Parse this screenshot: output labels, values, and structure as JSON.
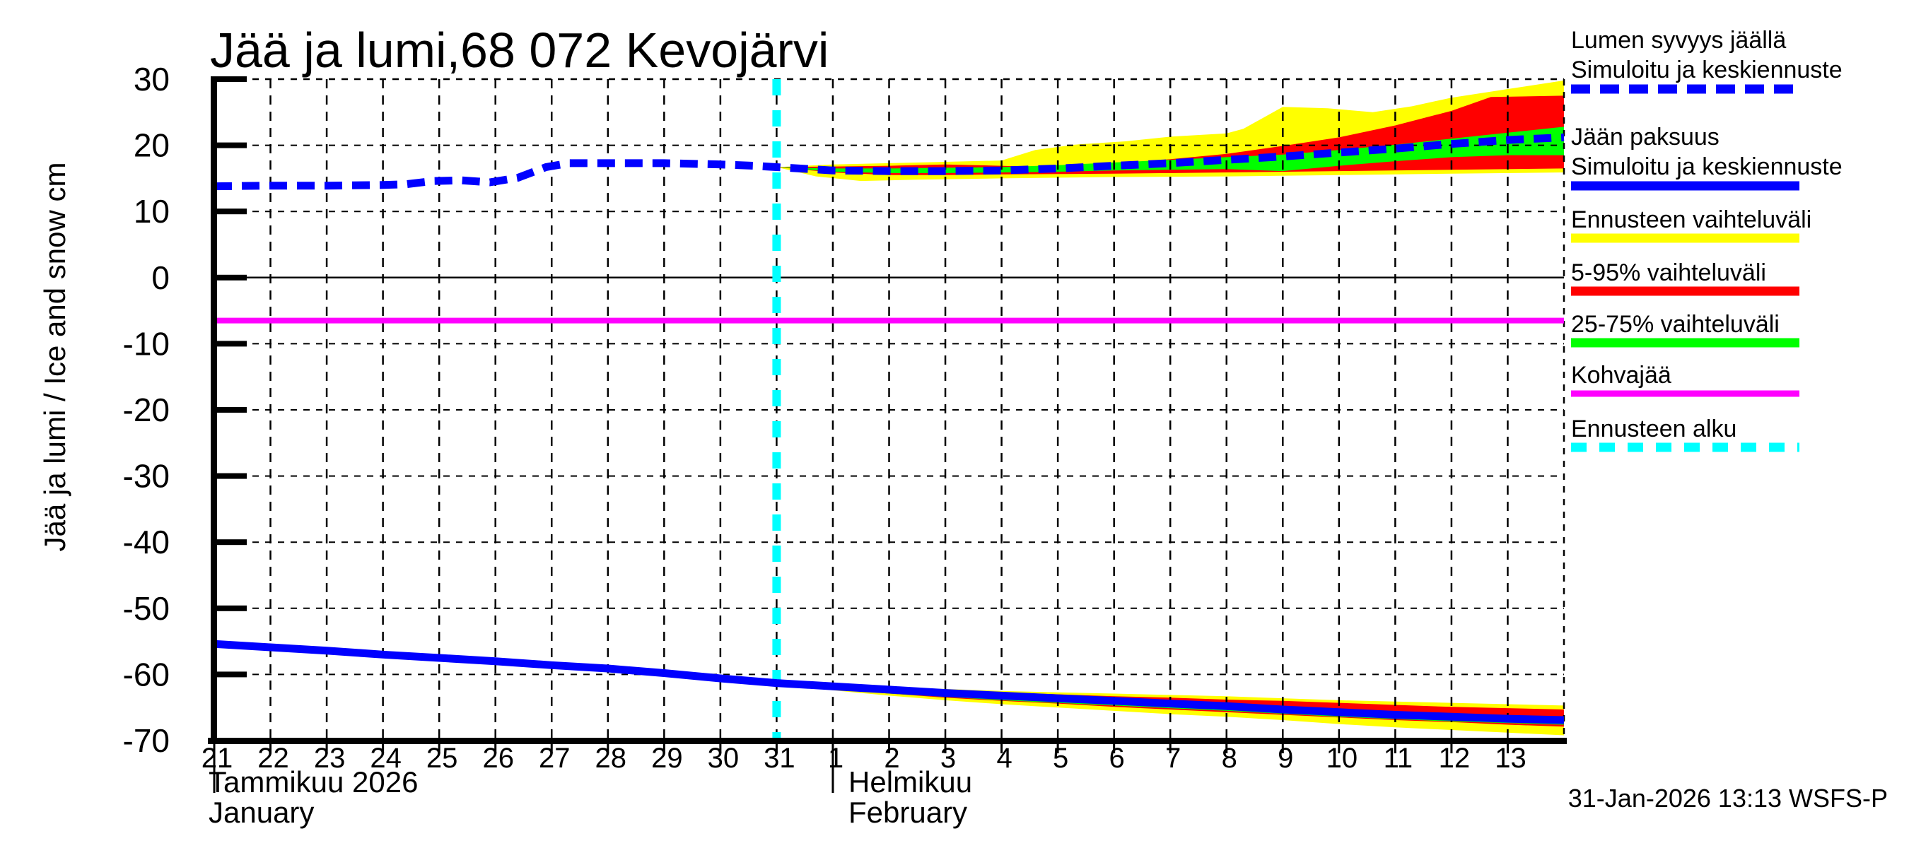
{
  "title": "Jää ja lumi,68 072 Kevojärvi",
  "footer": "31-Jan-2026 13:13 WSFS-P",
  "y_axis": {
    "label": "Jää ja lumi / Ice and snow   cm",
    "ticks": [
      30,
      20,
      10,
      0,
      -10,
      -20,
      -30,
      -40,
      -50,
      -60,
      -70
    ]
  },
  "x_axis": {
    "month_jan_fi": "Tammikuu 2026",
    "month_jan_en": "January",
    "month_feb_fi": "Helmikuu",
    "month_feb_en": "February",
    "jan_days": [
      "21",
      "22",
      "23",
      "24",
      "25",
      "26",
      "27",
      "28",
      "29",
      "30",
      "31"
    ],
    "feb_days": [
      "1",
      "2",
      "3",
      "4",
      "5",
      "6",
      "7",
      "8",
      "9",
      "10",
      "11",
      "12",
      "13"
    ]
  },
  "colors": {
    "median": "#0000ff",
    "range_forecast": "#ffff00",
    "range_5_95": "#ff0000",
    "range_25_75": "#00ff00",
    "kohvajaa": "#ff00ff",
    "forecast_start": "#00ffff",
    "axis": "#000000"
  },
  "legend": [
    {
      "lines": [
        "Lumen syvyys jäällä",
        "Simuloitu ja keskiennuste"
      ],
      "swatch": "dashed-blue"
    },
    {
      "lines": [
        "Jään paksuus",
        "Simuloitu ja keskiennuste"
      ],
      "swatch": "solid-blue"
    },
    {
      "lines": [
        "Ennusteen vaihteluväli"
      ],
      "swatch": "solid-yellow"
    },
    {
      "lines": [
        "5-95% vaihteluväli"
      ],
      "swatch": "solid-red"
    },
    {
      "lines": [
        "25-75% vaihteluväli"
      ],
      "swatch": "solid-green"
    },
    {
      "lines": [
        "Kohvajää"
      ],
      "swatch": "solid-magenta"
    },
    {
      "lines": [
        "Ennusteen alku"
      ],
      "swatch": "dashed-cyan"
    }
  ],
  "chart_data": {
    "type": "line",
    "title": "Jää ja lumi,68 072 Kevojärvi",
    "ylabel": "Jää ja lumi / Ice and snow (cm)",
    "x_unit": "days since 2026-01-21",
    "x_range": [
      0,
      24
    ],
    "ylim": [
      -70,
      30
    ],
    "grid": true,
    "legend_position": "right",
    "forecast_start_day": 10,
    "kohvajaa_cm": -6.5,
    "series": [
      {
        "name": "snow_depth_on_ice_median",
        "points": [
          [
            0,
            13.8
          ],
          [
            1,
            13.9
          ],
          [
            2,
            13.9
          ],
          [
            3,
            14.0
          ],
          [
            3.4,
            14.1
          ],
          [
            3.9,
            14.6
          ],
          [
            4.4,
            14.7
          ],
          [
            4.9,
            14.4
          ],
          [
            5.4,
            15.1
          ],
          [
            5.9,
            16.7
          ],
          [
            6.3,
            17.3
          ],
          [
            7,
            17.3
          ],
          [
            8,
            17.3
          ],
          [
            9,
            17.1
          ],
          [
            9.6,
            16.9
          ],
          [
            10,
            16.7
          ],
          [
            11,
            16.2
          ],
          [
            12,
            16.1
          ],
          [
            13,
            16.1
          ],
          [
            14,
            16.2
          ],
          [
            15,
            16.5
          ],
          [
            16,
            16.9
          ],
          [
            17,
            17.3
          ],
          [
            18,
            17.8
          ],
          [
            19,
            18.3
          ],
          [
            20,
            18.9
          ],
          [
            21,
            19.5
          ],
          [
            22,
            20.2
          ],
          [
            23,
            20.8
          ],
          [
            24,
            21.2
          ]
        ]
      },
      {
        "name": "ice_thickness_median",
        "points": [
          [
            0,
            -55.4
          ],
          [
            1,
            -55.9
          ],
          [
            2,
            -56.4
          ],
          [
            3,
            -57.0
          ],
          [
            4,
            -57.5
          ],
          [
            5,
            -58.0
          ],
          [
            6,
            -58.6
          ],
          [
            7,
            -59.1
          ],
          [
            8,
            -59.8
          ],
          [
            9,
            -60.6
          ],
          [
            10,
            -61.3
          ],
          [
            11,
            -61.8
          ],
          [
            12,
            -62.3
          ],
          [
            13,
            -62.8
          ],
          [
            14,
            -63.2
          ],
          [
            15,
            -63.6
          ],
          [
            16,
            -64.0
          ],
          [
            17,
            -64.4
          ],
          [
            18,
            -64.8
          ],
          [
            19,
            -65.3
          ],
          [
            20,
            -65.7
          ],
          [
            21,
            -66.1
          ],
          [
            22,
            -66.4
          ],
          [
            23,
            -66.7
          ],
          [
            24,
            -66.9
          ]
        ]
      },
      {
        "name": "kohvajaa",
        "points": [
          [
            0,
            -6.5
          ],
          [
            24,
            -6.5
          ]
        ]
      }
    ],
    "bands": [
      {
        "name": "snow-range-forecast",
        "color_key": "range_forecast",
        "hi": [
          [
            10,
            16.7
          ],
          [
            11,
            17.1
          ],
          [
            12,
            17.3
          ],
          [
            13,
            17.5
          ],
          [
            14,
            17.7
          ],
          [
            14.6,
            19.3
          ],
          [
            15.3,
            20.1
          ],
          [
            16.2,
            20.6
          ],
          [
            17,
            21.3
          ],
          [
            18,
            21.8
          ],
          [
            18.3,
            22.5
          ],
          [
            19,
            25.8
          ],
          [
            19.8,
            25.6
          ],
          [
            20.6,
            25.0
          ],
          [
            21.3,
            25.9
          ],
          [
            22,
            27.2
          ],
          [
            23,
            28.5
          ],
          [
            24,
            29.8
          ]
        ],
        "lo": [
          [
            10,
            16.7
          ],
          [
            10.7,
            15.3
          ],
          [
            11.5,
            14.6
          ],
          [
            12.5,
            14.8
          ],
          [
            14,
            15.0
          ],
          [
            16,
            15.2
          ],
          [
            18,
            15.3
          ],
          [
            20,
            15.5
          ],
          [
            22,
            15.7
          ],
          [
            24,
            15.9
          ]
        ]
      },
      {
        "name": "snow-range-5-95",
        "color_key": "range_5_95",
        "hi": [
          [
            10,
            16.7
          ],
          [
            11,
            16.8
          ],
          [
            12,
            16.9
          ],
          [
            13,
            17.1
          ],
          [
            14,
            16.9
          ],
          [
            15,
            16.6
          ],
          [
            16,
            17.2
          ],
          [
            17,
            17.9
          ],
          [
            18,
            18.7
          ],
          [
            19,
            19.9
          ],
          [
            20,
            21.2
          ],
          [
            21,
            23.0
          ],
          [
            22,
            25.2
          ],
          [
            22.7,
            27.3
          ],
          [
            24,
            27.5
          ]
        ],
        "lo": [
          [
            10,
            16.7
          ],
          [
            11,
            15.9
          ],
          [
            12,
            15.5
          ],
          [
            13,
            15.5
          ],
          [
            14,
            15.6
          ],
          [
            16,
            15.7
          ],
          [
            18,
            15.9
          ],
          [
            20,
            16.1
          ],
          [
            22,
            16.3
          ],
          [
            24,
            16.5
          ]
        ]
      },
      {
        "name": "snow-range-25-75",
        "color_key": "range_25_75",
        "hi": [
          [
            10,
            16.7
          ],
          [
            11,
            16.5
          ],
          [
            12,
            16.5
          ],
          [
            13,
            16.6
          ],
          [
            14,
            16.7
          ],
          [
            15,
            17.0
          ],
          [
            16,
            17.4
          ],
          [
            17,
            17.8
          ],
          [
            18,
            18.2
          ],
          [
            19,
            18.6
          ],
          [
            20,
            19.3
          ],
          [
            21,
            20.1
          ],
          [
            22,
            21.0
          ],
          [
            23,
            21.9
          ],
          [
            24,
            22.8
          ]
        ],
        "lo": [
          [
            10,
            16.7
          ],
          [
            11,
            16.0
          ],
          [
            12,
            15.8
          ],
          [
            13,
            15.8
          ],
          [
            14,
            15.9
          ],
          [
            15,
            16.0
          ],
          [
            16,
            16.2
          ],
          [
            17,
            16.3
          ],
          [
            18,
            16.4
          ],
          [
            19,
            16.1
          ],
          [
            20,
            16.9
          ],
          [
            21,
            17.6
          ],
          [
            22,
            18.2
          ],
          [
            23,
            18.5
          ],
          [
            24,
            18.5
          ]
        ]
      },
      {
        "name": "ice-range-forecast",
        "color_key": "range_forecast",
        "hi": [
          [
            10,
            -61.3
          ],
          [
            11,
            -61.6
          ],
          [
            12,
            -61.9
          ],
          [
            13,
            -62.2
          ],
          [
            14,
            -62.5
          ],
          [
            15,
            -62.7
          ],
          [
            16,
            -62.9
          ],
          [
            17,
            -63.1
          ],
          [
            18,
            -63.3
          ],
          [
            19,
            -63.6
          ],
          [
            20,
            -63.9
          ],
          [
            21,
            -64.1
          ],
          [
            22,
            -64.3
          ],
          [
            23,
            -64.5
          ],
          [
            24,
            -64.7
          ]
        ],
        "lo": [
          [
            10,
            -61.3
          ],
          [
            11,
            -62.4
          ],
          [
            12,
            -63.2
          ],
          [
            13,
            -63.9
          ],
          [
            14,
            -64.5
          ],
          [
            15,
            -65.0
          ],
          [
            16,
            -65.5
          ],
          [
            17,
            -66.0
          ],
          [
            18,
            -66.4
          ],
          [
            19,
            -66.9
          ],
          [
            20,
            -67.5
          ],
          [
            21,
            -68.0
          ],
          [
            22,
            -68.4
          ],
          [
            23,
            -68.8
          ],
          [
            24,
            -69.2
          ]
        ]
      },
      {
        "name": "ice-range-5-95",
        "color_key": "range_5_95",
        "hi": [
          [
            10,
            -61.3
          ],
          [
            11,
            -61.7
          ],
          [
            12,
            -62.1
          ],
          [
            13,
            -62.4
          ],
          [
            14,
            -62.7
          ],
          [
            15,
            -63.0
          ],
          [
            16,
            -63.3
          ],
          [
            17,
            -63.5
          ],
          [
            18,
            -63.8
          ],
          [
            19,
            -64.0
          ],
          [
            20,
            -64.3
          ],
          [
            21,
            -64.6
          ],
          [
            22,
            -64.9
          ],
          [
            23,
            -65.1
          ],
          [
            24,
            -65.3
          ]
        ],
        "lo": [
          [
            10,
            -61.3
          ],
          [
            11,
            -62.2
          ],
          [
            12,
            -62.9
          ],
          [
            13,
            -63.5
          ],
          [
            14,
            -64.0
          ],
          [
            15,
            -64.4
          ],
          [
            16,
            -64.9
          ],
          [
            17,
            -65.3
          ],
          [
            18,
            -65.7
          ],
          [
            19,
            -66.1
          ],
          [
            20,
            -66.5
          ],
          [
            21,
            -66.9
          ],
          [
            22,
            -67.2
          ],
          [
            23,
            -67.6
          ],
          [
            24,
            -67.9
          ]
        ]
      },
      {
        "name": "ice-range-25-75",
        "color_key": "range_25_75",
        "hi": [
          [
            10,
            -61.3
          ],
          [
            12,
            -61.9
          ],
          [
            14,
            -62.8
          ],
          [
            16,
            -63.6
          ],
          [
            18,
            -64.4
          ],
          [
            20,
            -65.2
          ],
          [
            22,
            -65.9
          ],
          [
            24,
            -66.4
          ]
        ],
        "lo": [
          [
            10,
            -61.3
          ],
          [
            12,
            -62.9
          ],
          [
            14,
            -63.9
          ],
          [
            16,
            -64.7
          ],
          [
            18,
            -65.5
          ],
          [
            20,
            -66.4
          ],
          [
            22,
            -67.1
          ],
          [
            24,
            -67.6
          ]
        ]
      }
    ]
  }
}
